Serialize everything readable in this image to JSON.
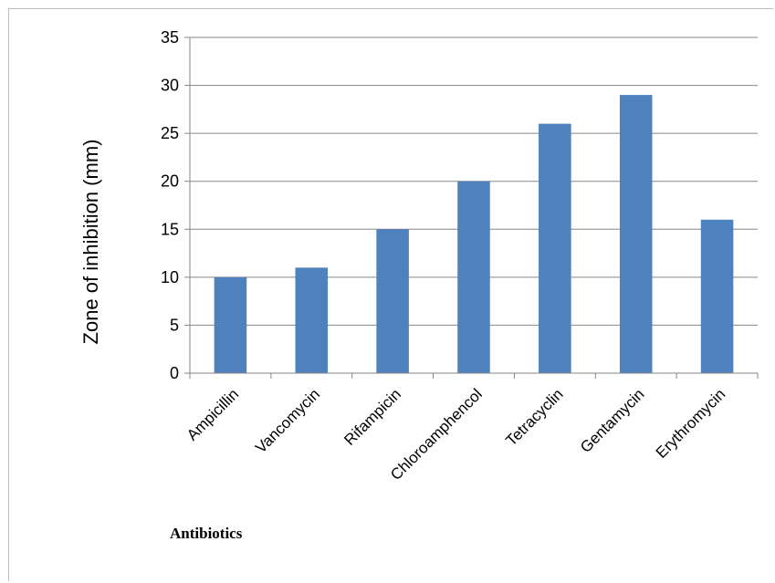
{
  "chart_data": {
    "type": "bar",
    "categories": [
      "Ampicillin",
      "Vancomycin",
      "Rifampicin",
      "Chloroamphencol",
      "Tetracyclin",
      "Gentamycin",
      "Erythromycin"
    ],
    "values": [
      10,
      11,
      15,
      20,
      26,
      29,
      16
    ],
    "xlabel": "Antibiotics",
    "ylabel": "Zone of inhibition (mm)",
    "ylim": [
      0,
      35
    ],
    "yticks": [
      0,
      5,
      10,
      15,
      20,
      25,
      30,
      35
    ],
    "grid": true,
    "bar_color": "#4f81bd",
    "legend": "none"
  }
}
